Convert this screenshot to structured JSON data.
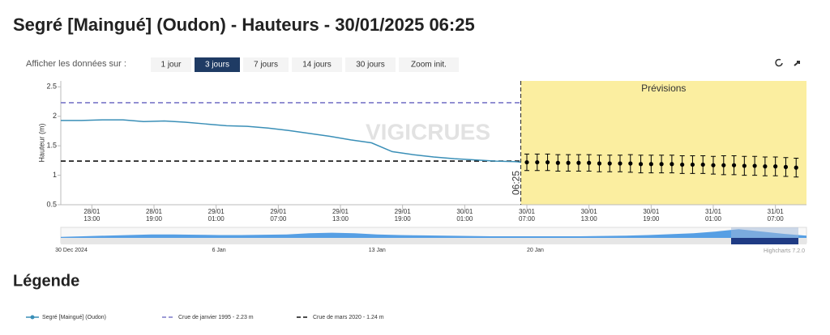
{
  "header": {
    "title": "Segré [Maingué] (Oudon) - Hauteurs - 30/01/2025 06:25"
  },
  "controls": {
    "prompt": "Afficher les données sur :",
    "buttons": [
      "1 jour",
      "3 jours",
      "7 jours",
      "14 jours",
      "30 jours",
      "Zoom init."
    ],
    "active": 1
  },
  "chart_data": {
    "type": "line",
    "y_label": "Hauteur (m)",
    "watermark": "VIGICRUES",
    "ylim": [
      0.5,
      2.6
    ],
    "yticks": [
      0.5,
      1,
      1.5,
      2,
      2.5
    ],
    "xlim": [
      "28/01 10:00",
      "31/01 10:00"
    ],
    "xticks": [
      {
        "value": "28/01 13:00",
        "label": [
          "28/01",
          "13:00"
        ]
      },
      {
        "value": "28/01 19:00",
        "label": [
          "28/01",
          "19:00"
        ]
      },
      {
        "value": "29/01 01:00",
        "label": [
          "29/01",
          "01:00"
        ]
      },
      {
        "value": "29/01 07:00",
        "label": [
          "29/01",
          "07:00"
        ]
      },
      {
        "value": "29/01 13:00",
        "label": [
          "29/01",
          "13:00"
        ]
      },
      {
        "value": "29/01 19:00",
        "label": [
          "29/01",
          "19:00"
        ]
      },
      {
        "value": "30/01 01:00",
        "label": [
          "30/01",
          "01:00"
        ]
      },
      {
        "value": "30/01 07:00",
        "label": [
          "30/01",
          "07:00"
        ]
      },
      {
        "value": "30/01 13:00",
        "label": [
          "30/01",
          "13:00"
        ]
      },
      {
        "value": "30/01 19:00",
        "label": [
          "30/01",
          "19:00"
        ]
      },
      {
        "value": "31/01 01:00",
        "label": [
          "31/01",
          "01:00"
        ]
      },
      {
        "value": "31/01 07:00",
        "label": [
          "31/01",
          "07:00"
        ]
      }
    ],
    "plot_line": {
      "x": "30/01 06:25",
      "label": "06:25"
    },
    "forecast_band": {
      "label": "Prévisions",
      "color": "#fbeea0"
    },
    "series": [
      {
        "name": "Segré [Maingué] (Oudon)",
        "color": "#3a8fb7",
        "x": [
          "28/01 10:00",
          "28/01 12:00",
          "28/01 14:00",
          "28/01 16:00",
          "28/01 18:00",
          "28/01 20:00",
          "28/01 22:00",
          "29/01 00:00",
          "29/01 02:00",
          "29/01 04:00",
          "29/01 06:00",
          "29/01 08:00",
          "29/01 10:00",
          "29/01 12:00",
          "29/01 14:00",
          "29/01 16:00",
          "29/01 18:00",
          "29/01 20:00",
          "29/01 22:00",
          "30/01 00:00",
          "30/01 02:00",
          "30/01 04:00",
          "30/01 06:00",
          "30/01 06:25"
        ],
        "values": [
          1.93,
          1.93,
          1.94,
          1.94,
          1.91,
          1.92,
          1.9,
          1.87,
          1.84,
          1.83,
          1.8,
          1.76,
          1.71,
          1.66,
          1.6,
          1.55,
          1.4,
          1.35,
          1.31,
          1.28,
          1.26,
          1.24,
          1.23,
          1.22
        ]
      }
    ],
    "forecast": {
      "color": "#000000",
      "x": [
        "30/01 07:00",
        "30/01 08:00",
        "30/01 09:00",
        "30/01 10:00",
        "30/01 11:00",
        "30/01 12:00",
        "30/01 13:00",
        "30/01 14:00",
        "30/01 15:00",
        "30/01 16:00",
        "30/01 17:00",
        "30/01 18:00",
        "30/01 19:00",
        "30/01 20:00",
        "30/01 21:00",
        "30/01 22:00",
        "30/01 23:00",
        "31/01 00:00",
        "31/01 01:00",
        "31/01 02:00",
        "31/01 03:00",
        "31/01 04:00",
        "31/01 05:00",
        "31/01 06:00",
        "31/01 07:00",
        "31/01 08:00",
        "31/01 09:00"
      ],
      "values": [
        1.22,
        1.22,
        1.22,
        1.21,
        1.21,
        1.21,
        1.21,
        1.2,
        1.2,
        1.2,
        1.2,
        1.19,
        1.19,
        1.19,
        1.19,
        1.18,
        1.18,
        1.18,
        1.17,
        1.17,
        1.17,
        1.16,
        1.16,
        1.15,
        1.15,
        1.14,
        1.13
      ],
      "low": [
        1.08,
        1.08,
        1.08,
        1.07,
        1.07,
        1.07,
        1.07,
        1.06,
        1.06,
        1.06,
        1.05,
        1.04,
        1.04,
        1.04,
        1.04,
        1.03,
        1.03,
        1.03,
        1.02,
        1.01,
        1.01,
        1.0,
        1.0,
        0.99,
        0.99,
        0.98,
        0.97
      ],
      "high": [
        1.36,
        1.36,
        1.36,
        1.35,
        1.35,
        1.35,
        1.35,
        1.34,
        1.34,
        1.34,
        1.35,
        1.34,
        1.34,
        1.34,
        1.34,
        1.33,
        1.33,
        1.33,
        1.32,
        1.33,
        1.33,
        1.32,
        1.32,
        1.31,
        1.31,
        1.3,
        1.29
      ]
    },
    "reference_lines": [
      {
        "name": "Crue de janvier 1995 - 2.23 m",
        "value": 2.23,
        "color": "#7b78c9"
      },
      {
        "name": "Crue de mars 2020 - 1.24 m",
        "value": 1.24,
        "color": "#111111"
      }
    ],
    "navigator": {
      "color": "#3a8fe0",
      "ylim": [
        0,
        2.6
      ],
      "values": [
        1.0,
        1.1,
        1.2,
        1.3,
        1.4,
        1.4,
        1.35,
        1.3,
        1.3,
        1.35,
        1.4,
        1.6,
        1.7,
        1.6,
        1.4,
        1.3,
        1.25,
        1.2,
        1.15,
        1.1,
        1.1,
        1.1,
        1.1,
        1.1,
        1.15,
        1.2,
        1.3,
        1.45,
        1.6,
        1.9,
        2.3,
        1.9,
        1.5,
        1.2
      ],
      "labels": [
        "30 Dec 2024",
        "6 Jan",
        "13 Jan",
        "20 Jan"
      ]
    },
    "credits": "Highcharts 7.2.0"
  },
  "legend": {
    "title": "Légende"
  }
}
